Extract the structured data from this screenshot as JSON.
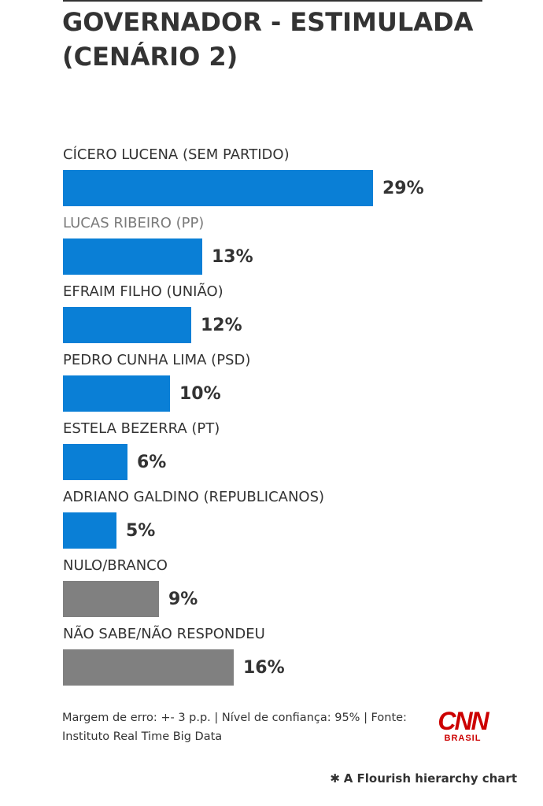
{
  "header": {
    "title_line1": "GOVERNADOR - ESTIMULADA",
    "title_line2": "(CENÁRIO 2)"
  },
  "chart_data": {
    "type": "bar",
    "orientation": "horizontal",
    "categories": [
      "CÍCERO LUCENA (SEM PARTIDO)",
      "LUCAS RIBEIRO (PP)",
      "EFRAIM FILHO (UNIÃO)",
      "PEDRO CUNHA LIMA (PSD)",
      "ESTELA BEZERRA (PT)",
      "ADRIANO GALDINO (REPUBLICANOS)",
      "NULO/BRANCO",
      "NÃO SABE/NÃO RESPONDEU"
    ],
    "values": [
      29,
      13,
      12,
      10,
      6,
      5,
      9,
      16
    ],
    "value_labels": [
      "29%",
      "13%",
      "12%",
      "10%",
      "6%",
      "5%",
      "9%",
      "16%"
    ],
    "bar_colors": [
      "#0a7fd6",
      "#0a7fd6",
      "#0a7fd6",
      "#0a7fd6",
      "#0a7fd6",
      "#0a7fd6",
      "#808080",
      "#808080"
    ],
    "label_colors": [
      "#333333",
      "#7a7a7a",
      "#333333",
      "#333333",
      "#333333",
      "#333333",
      "#333333",
      "#333333"
    ],
    "xlim": [
      0,
      29
    ],
    "title": "GOVERNADOR - ESTIMULADA (CENÁRIO 2)",
    "grid": false,
    "legend": "none"
  },
  "footer": {
    "note_line1": "Margem de erro: +- 3 p.p. | Nível de confiança: 95% | Fonte:",
    "note_line2": "Instituto Real Time Big Data",
    "logo_text": "CNN",
    "logo_subtext": "BRASIL",
    "credit_icon": "flourish-asterisk-icon",
    "credit_text": "A Flourish hierarchy chart"
  }
}
